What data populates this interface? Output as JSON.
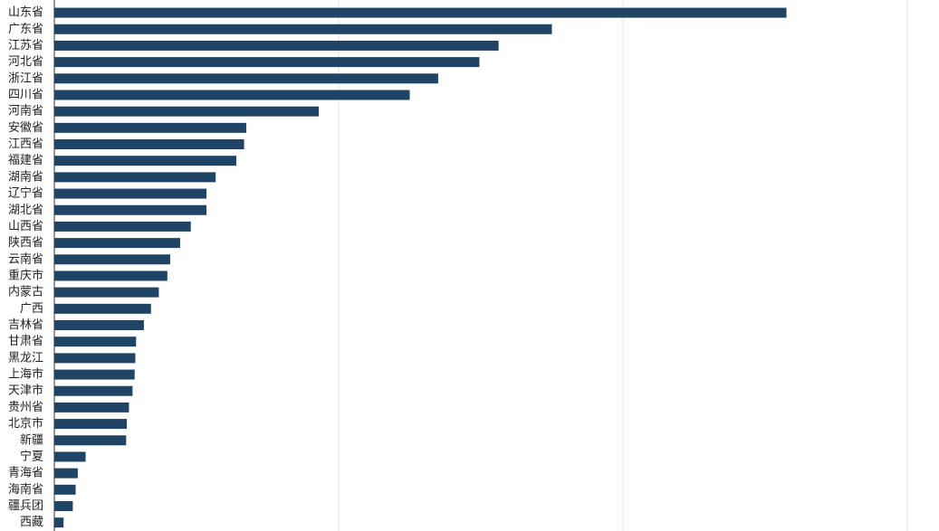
{
  "chart_data": {
    "type": "bar",
    "orientation": "horizontal",
    "title": "",
    "xlabel": "",
    "ylabel": "",
    "grid": true,
    "xlim": [
      0,
      1200
    ],
    "gridlines_x": [
      0,
      400,
      800,
      1200
    ],
    "bar_color": "#1f4466",
    "categories": [
      "山东省",
      "广东省",
      "江苏省",
      "河北省",
      "浙江省",
      "四川省",
      "河南省",
      "安徽省",
      "江西省",
      "福建省",
      "湖南省",
      "辽宁省",
      "湖北省",
      "山西省",
      "陕西省",
      "云南省",
      "重庆市",
      "内蒙古",
      "广西",
      "吉林省",
      "甘肃省",
      "黑龙江",
      "上海市",
      "天津市",
      "贵州省",
      "北京市",
      "新疆",
      "宁夏",
      "青海省",
      "海南省",
      "疆兵团",
      "西藏"
    ],
    "values": [
      1030,
      700,
      625,
      598,
      540,
      500,
      372,
      270,
      267,
      256,
      227,
      214,
      214,
      192,
      177,
      163,
      159,
      147,
      136,
      126,
      115,
      114,
      113,
      110,
      105,
      102,
      101,
      44,
      33,
      30,
      26,
      13
    ]
  }
}
